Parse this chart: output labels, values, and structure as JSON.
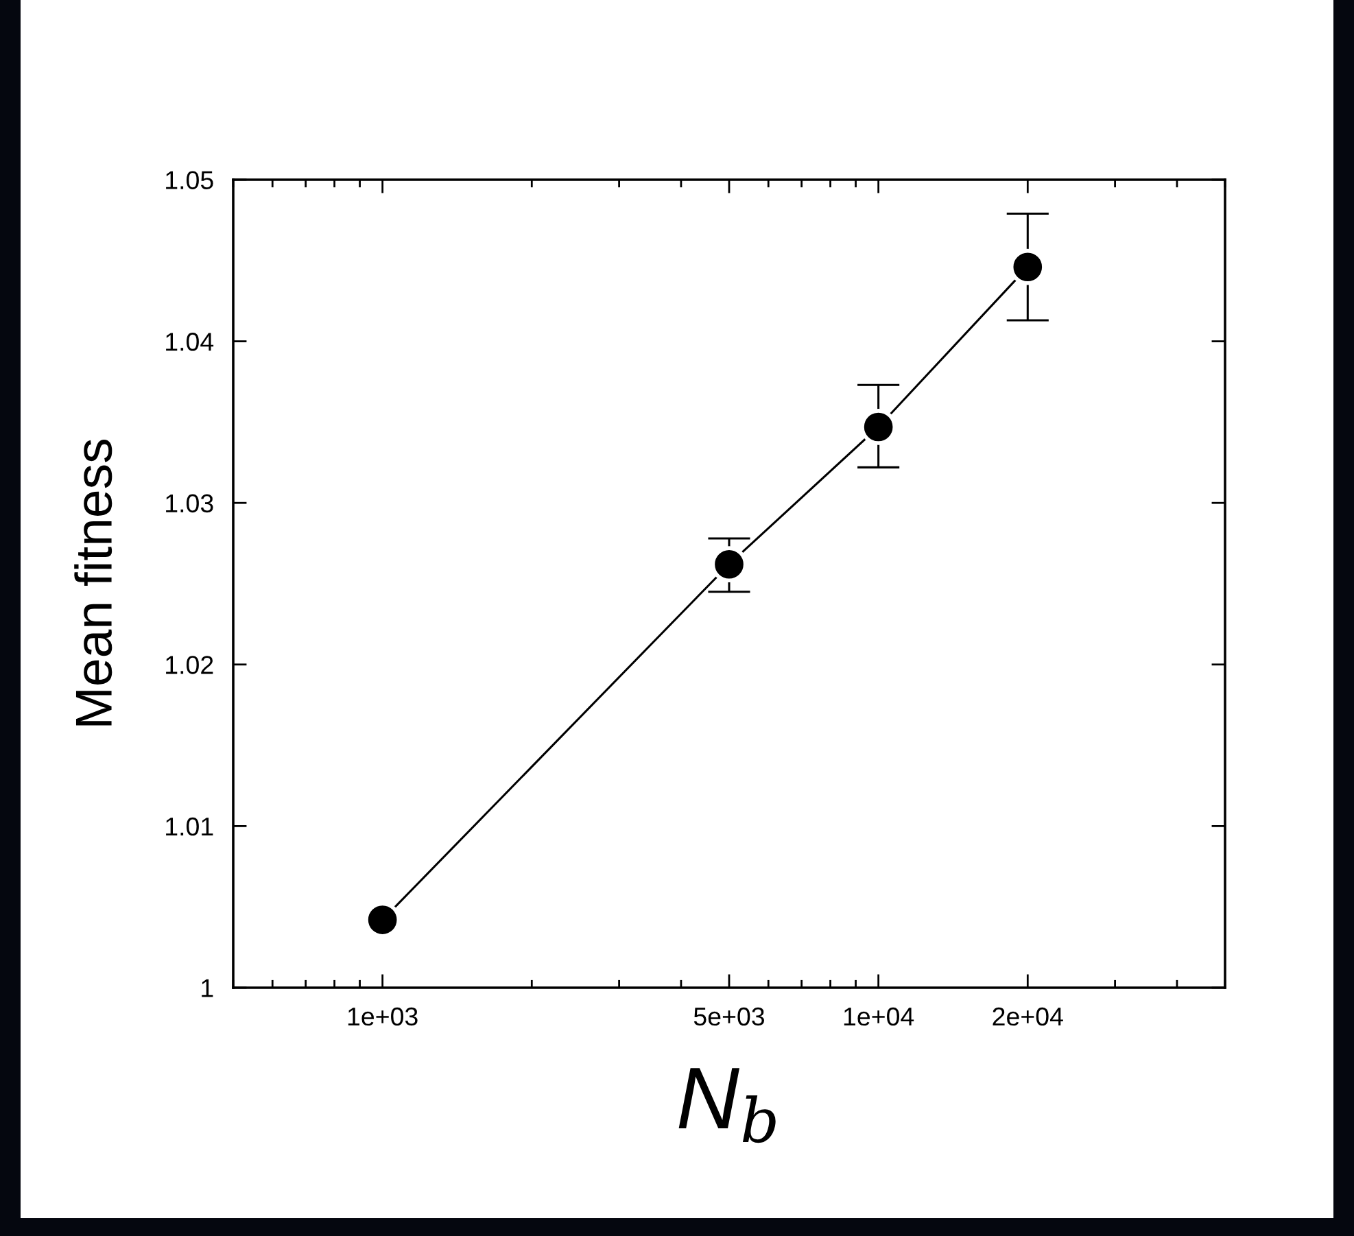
{
  "chart_data": {
    "type": "line",
    "xlabel": "N$_{b}$",
    "ylabel": "Mean fitness",
    "x": [
      1000,
      5000,
      10000,
      20000
    ],
    "series": [
      {
        "color": "#000000",
        "values": [
          1.0042,
          1.0262,
          1.0347,
          1.0446
        ],
        "errors": [
          null,
          [
            1.0245,
            1.0278
          ],
          [
            1.0322,
            1.0373
          ],
          [
            1.0413,
            1.0479
          ]
        ]
      }
    ],
    "log": "x",
    "marker": "circle",
    "line_style": "solid",
    "grid": false,
    "xlim": [
      500,
      50000
    ],
    "xticks": [
      {
        "value": 1000,
        "label": "1e+03"
      },
      {
        "value": 5000,
        "label": "5e+03"
      },
      {
        "value": 10000,
        "label": "1e+04"
      },
      {
        "value": 20000,
        "label": "2e+04"
      }
    ],
    "ylim": [
      1,
      1.05
    ],
    "yticks": [
      1,
      1.01,
      1.02,
      1.03,
      1.04,
      1.05
    ]
  }
}
